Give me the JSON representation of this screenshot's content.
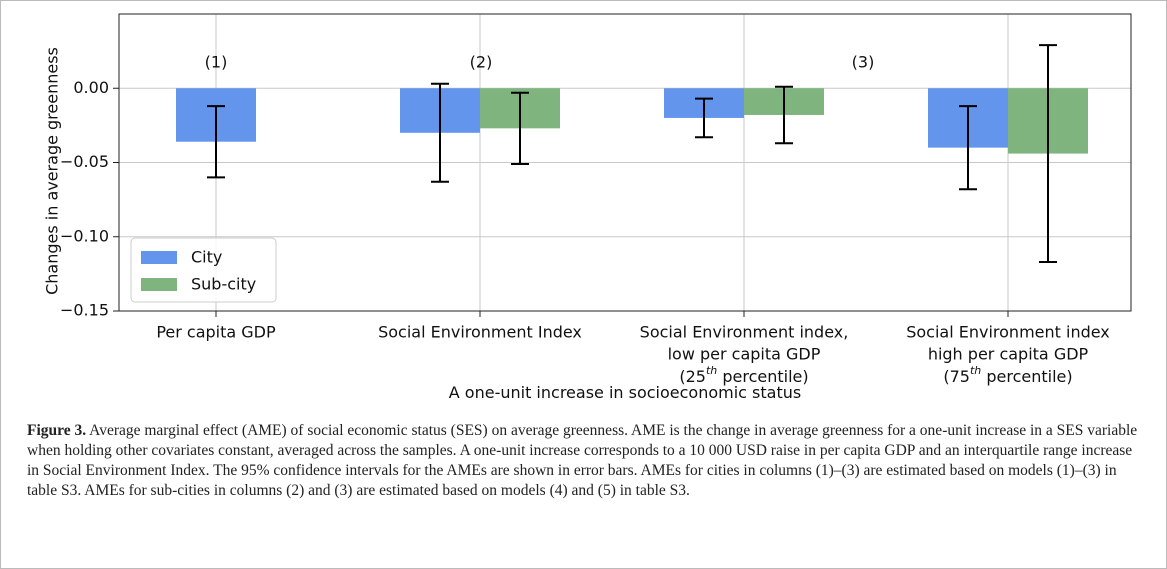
{
  "chart_data": {
    "type": "bar",
    "ylabel": "Changes in average greenness",
    "xlabel": "A one-unit increase in socioeconomic status",
    "categories": [
      [
        "Per capita GDP"
      ],
      [
        "Social Environment Index"
      ],
      [
        "Social Environment index,",
        "low per capita GDP",
        [
          "(25",
          "th",
          " percentile)"
        ]
      ],
      [
        "Social Environment index",
        "high per capita GDP",
        [
          "(75",
          "th",
          " percentile)"
        ]
      ]
    ],
    "annotations": [
      "(1)",
      "(2)",
      "(3)"
    ],
    "series": [
      {
        "name": "City",
        "color": "#6495ed",
        "values": [
          -0.036,
          -0.03,
          -0.02,
          -0.04
        ],
        "ci_low": [
          -0.06,
          -0.063,
          -0.033,
          -0.068
        ],
        "ci_high": [
          -0.012,
          0.003,
          -0.007,
          -0.012
        ]
      },
      {
        "name": "Sub-city",
        "color": "#7fb47f",
        "values": [
          null,
          -0.027,
          -0.018,
          -0.044
        ],
        "ci_low": [
          null,
          -0.051,
          -0.037,
          -0.117
        ],
        "ci_high": [
          null,
          -0.003,
          0.001,
          0.029
        ]
      }
    ],
    "ylim": [
      -0.15,
      0.05
    ],
    "yticks": [
      {
        "value": -0.15,
        "label": "−0.15"
      },
      {
        "value": -0.1,
        "label": "−0.10"
      },
      {
        "value": -0.05,
        "label": "−0.05"
      },
      {
        "value": 0,
        "label": "0.00"
      }
    ],
    "grid": true,
    "legend": "lower left"
  },
  "caption": {
    "label": "Figure 3.",
    "text": " Average marginal effect (AME) of social economic status (SES) on average greenness. AME is the change in average greenness for a one-unit increase in a SES variable when holding other covariates constant, averaged across the samples. A one-unit increase corresponds to a 10 000 USD raise in per capita GDP and an interquartile range increase in Social Environment Index. The 95% confidence intervals for the AMEs are shown in error bars. AMEs for cities in columns (1)–(3) are estimated based on models (1)–(3) in table S3. AMEs for sub-cities in columns (2) and (3) are estimated based on models (4) and (5) in table S3."
  }
}
